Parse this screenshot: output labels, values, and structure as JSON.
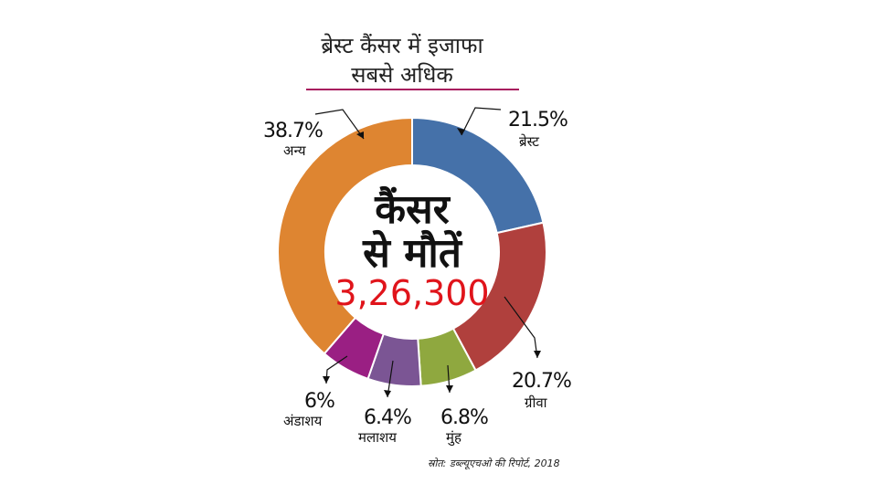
{
  "chart_data": {
    "type": "pie",
    "variant": "donut",
    "title_lines": [
      "ब्रेस्ट कैंसर में इजाफा",
      "सबसे अधिक"
    ],
    "center": {
      "line1": "कैंसर",
      "line2": "से मौतें",
      "value": "3,26,300"
    },
    "slices": [
      {
        "label": "ब्रेस्ट",
        "value": 21.5,
        "display": "21.5%",
        "color": "#4571a9"
      },
      {
        "label": "ग्रीवा",
        "value": 20.7,
        "display": "20.7%",
        "color": "#b0403d"
      },
      {
        "label": "मुंह",
        "value": 6.8,
        "display": "6.8%",
        "color": "#8fa83f"
      },
      {
        "label": "मलाशय",
        "value": 6.4,
        "display": "6.4%",
        "color": "#7b5594"
      },
      {
        "label": "अंडाशय",
        "value": 6,
        "display": "6%",
        "color": "#9a1f83"
      },
      {
        "label": "अन्य",
        "value": 38.7,
        "display": "38.7%",
        "color": "#de8531"
      }
    ],
    "source": "स्रोत: डब्ल्यूएचओ की रिपोर्ट, 2018",
    "accent_color": "#a8195e",
    "center_value_color": "#e0141b"
  }
}
